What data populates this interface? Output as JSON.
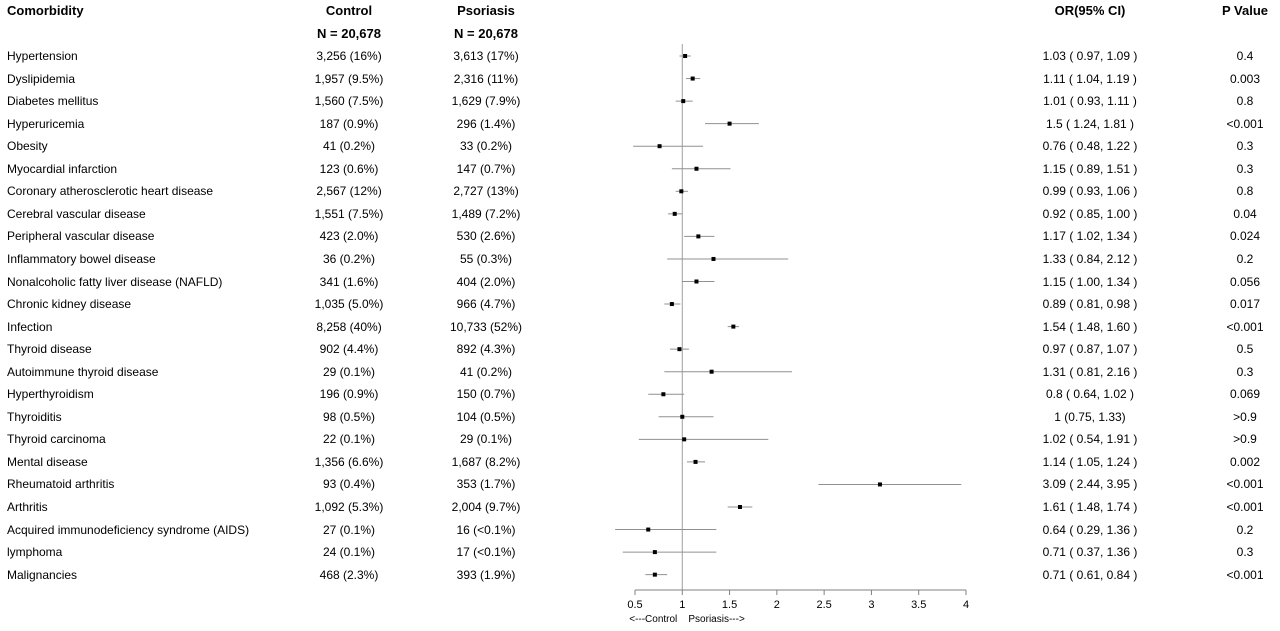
{
  "headers": {
    "comorbidity": "Comorbidity",
    "control": "Control",
    "psoriasis": "Psoriasis",
    "or": "OR(95% CI)",
    "p": "P Value",
    "control_n": "N = 20,678",
    "psoriasis_n": "N = 20,678"
  },
  "rows": [
    {
      "name": "Hypertension",
      "control": "3,256 (16%)",
      "psoriasis": "3,613 (17%)",
      "or_text": "1.03 ( 0.97, 1.09 )",
      "p": "0.4"
    },
    {
      "name": "Dyslipidemia",
      "control": "1,957 (9.5%)",
      "psoriasis": "2,316 (11%)",
      "or_text": "1.11 ( 1.04, 1.19 )",
      "p": "0.003"
    },
    {
      "name": "Diabetes mellitus",
      "control": "1,560 (7.5%)",
      "psoriasis": "1,629 (7.9%)",
      "or_text": "1.01 ( 0.93, 1.11 )",
      "p": "0.8"
    },
    {
      "name": "Hyperuricemia",
      "control": "187 (0.9%)",
      "psoriasis": "296 (1.4%)",
      "or_text": "1.5 ( 1.24, 1.81 )",
      "p": "<0.001"
    },
    {
      "name": "Obesity",
      "control": "41 (0.2%)",
      "psoriasis": "33 (0.2%)",
      "or_text": "0.76 ( 0.48, 1.22 )",
      "p": "0.3"
    },
    {
      "name": "Myocardial infarction",
      "control": "123 (0.6%)",
      "psoriasis": "147 (0.7%)",
      "or_text": "1.15 ( 0.89, 1.51 )",
      "p": "0.3"
    },
    {
      "name": "Coronary atherosclerotic heart disease",
      "control": "2,567 (12%)",
      "psoriasis": "2,727 (13%)",
      "or_text": "0.99 ( 0.93, 1.06 )",
      "p": "0.8"
    },
    {
      "name": "Cerebral vascular disease",
      "control": "1,551 (7.5%)",
      "psoriasis": "1,489 (7.2%)",
      "or_text": "0.92 ( 0.85, 1.00 )",
      "p": "0.04"
    },
    {
      "name": "Peripheral vascular disease",
      "control": "423 (2.0%)",
      "psoriasis": "530 (2.6%)",
      "or_text": "1.17 ( 1.02, 1.34 )",
      "p": "0.024"
    },
    {
      "name": "Inflammatory bowel disease",
      "control": "36 (0.2%)",
      "psoriasis": "55 (0.3%)",
      "or_text": "1.33 ( 0.84, 2.12 )",
      "p": "0.2"
    },
    {
      "name": "Nonalcoholic fatty liver disease (NAFLD)",
      "control": "341 (1.6%)",
      "psoriasis": "404 (2.0%)",
      "or_text": "1.15 ( 1.00, 1.34 )",
      "p": "0.056"
    },
    {
      "name": "Chronic kidney disease",
      "control": "1,035 (5.0%)",
      "psoriasis": "966 (4.7%)",
      "or_text": "0.89 ( 0.81, 0.98 )",
      "p": "0.017"
    },
    {
      "name": "Infection",
      "control": "8,258 (40%)",
      "psoriasis": "10,733 (52%)",
      "or_text": "1.54 ( 1.48, 1.60 )",
      "p": "<0.001"
    },
    {
      "name": "Thyroid disease",
      "control": "902 (4.4%)",
      "psoriasis": "892 (4.3%)",
      "or_text": "0.97 ( 0.87, 1.07 )",
      "p": "0.5"
    },
    {
      "name": "Autoimmune thyroid disease",
      "control": "29 (0.1%)",
      "psoriasis": "41 (0.2%)",
      "or_text": "1.31 ( 0.81, 2.16 )",
      "p": "0.3"
    },
    {
      "name": "Hyperthyroidism",
      "control": "196 (0.9%)",
      "psoriasis": "150 (0.7%)",
      "or_text": "0.8 ( 0.64, 1.02 )",
      "p": "0.069"
    },
    {
      "name": "Thyroiditis",
      "control": "98 (0.5%)",
      "psoriasis": "104 (0.5%)",
      "or_text": "1 (0.75, 1.33)",
      "p": ">0.9"
    },
    {
      "name": "Thyroid carcinoma",
      "control": "22 (0.1%)",
      "psoriasis": "29 (0.1%)",
      "or_text": "1.02 ( 0.54, 1.91 )",
      "p": ">0.9"
    },
    {
      "name": "Mental disease",
      "control": "1,356 (6.6%)",
      "psoriasis": "1,687 (8.2%)",
      "or_text": "1.14 ( 1.05, 1.24 )",
      "p": "0.002"
    },
    {
      "name": "Rheumatoid arthritis",
      "control": "93 (0.4%)",
      "psoriasis": "353 (1.7%)",
      "or_text": "3.09 ( 2.44, 3.95 )",
      "p": "<0.001"
    },
    {
      "name": "Arthritis",
      "control": "1,092 (5.3%)",
      "psoriasis": "2,004 (9.7%)",
      "or_text": "1.61 ( 1.48, 1.74 )",
      "p": "<0.001"
    },
    {
      "name": "Acquired immunodeficiency syndrome (AIDS)",
      "control": "27 (0.1%)",
      "psoriasis": "16 (<0.1%)",
      "or_text": "0.64 ( 0.29, 1.36 )",
      "p": "0.2"
    },
    {
      "name": "lymphoma",
      "control": "24 (0.1%)",
      "psoriasis": "17 (<0.1%)",
      "or_text": "0.71 ( 0.37, 1.36 )",
      "p": "0.3"
    },
    {
      "name": "Malignancies",
      "control": "468 (2.3%)",
      "psoriasis": "393 (1.9%)",
      "or_text": "0.71 ( 0.61, 0.84 )",
      "p": "<0.001"
    }
  ],
  "chart_data": {
    "type": "forest",
    "xlabel": "<---Control    Psoriasis--->",
    "xlim": [
      0.5,
      4
    ],
    "xticks": [
      0.5,
      1,
      1.5,
      2,
      2.5,
      3,
      3.5,
      4
    ],
    "xtick_labels": [
      "0.5",
      "1",
      "1.5",
      "2",
      "2.5",
      "3",
      "3.5",
      "4"
    ],
    "reference_line": 1,
    "categories": [
      "Hypertension",
      "Dyslipidemia",
      "Diabetes mellitus",
      "Hyperuricemia",
      "Obesity",
      "Myocardial infarction",
      "Coronary atherosclerotic heart disease",
      "Cerebral vascular disease",
      "Peripheral vascular disease",
      "Inflammatory bowel disease",
      "Nonalcoholic fatty liver disease (NAFLD)",
      "Chronic kidney disease",
      "Infection",
      "Thyroid disease",
      "Autoimmune thyroid disease",
      "Hyperthyroidism",
      "Thyroiditis",
      "Thyroid carcinoma",
      "Mental disease",
      "Rheumatoid arthritis",
      "Arthritis",
      "Acquired immunodeficiency syndrome (AIDS)",
      "lymphoma",
      "Malignancies"
    ],
    "or": [
      1.03,
      1.11,
      1.01,
      1.5,
      0.76,
      1.15,
      0.99,
      0.92,
      1.17,
      1.33,
      1.15,
      0.89,
      1.54,
      0.97,
      1.31,
      0.8,
      1,
      1.02,
      1.14,
      3.09,
      1.61,
      0.64,
      0.71,
      0.71
    ],
    "ci_low": [
      0.97,
      1.04,
      0.93,
      1.24,
      0.48,
      0.89,
      0.93,
      0.85,
      1.02,
      0.84,
      1.0,
      0.81,
      1.48,
      0.87,
      0.81,
      0.64,
      0.75,
      0.54,
      1.05,
      2.44,
      1.48,
      0.29,
      0.37,
      0.61
    ],
    "ci_high": [
      1.09,
      1.19,
      1.11,
      1.81,
      1.22,
      1.51,
      1.06,
      1.0,
      1.34,
      2.12,
      1.34,
      0.98,
      1.6,
      1.07,
      2.16,
      1.02,
      1.33,
      1.91,
      1.24,
      3.95,
      1.74,
      1.36,
      1.36,
      0.84
    ],
    "colors": {
      "point": "#000000",
      "ci": "#909090",
      "axis": "#808080",
      "reference": "#a0a0a0"
    }
  }
}
